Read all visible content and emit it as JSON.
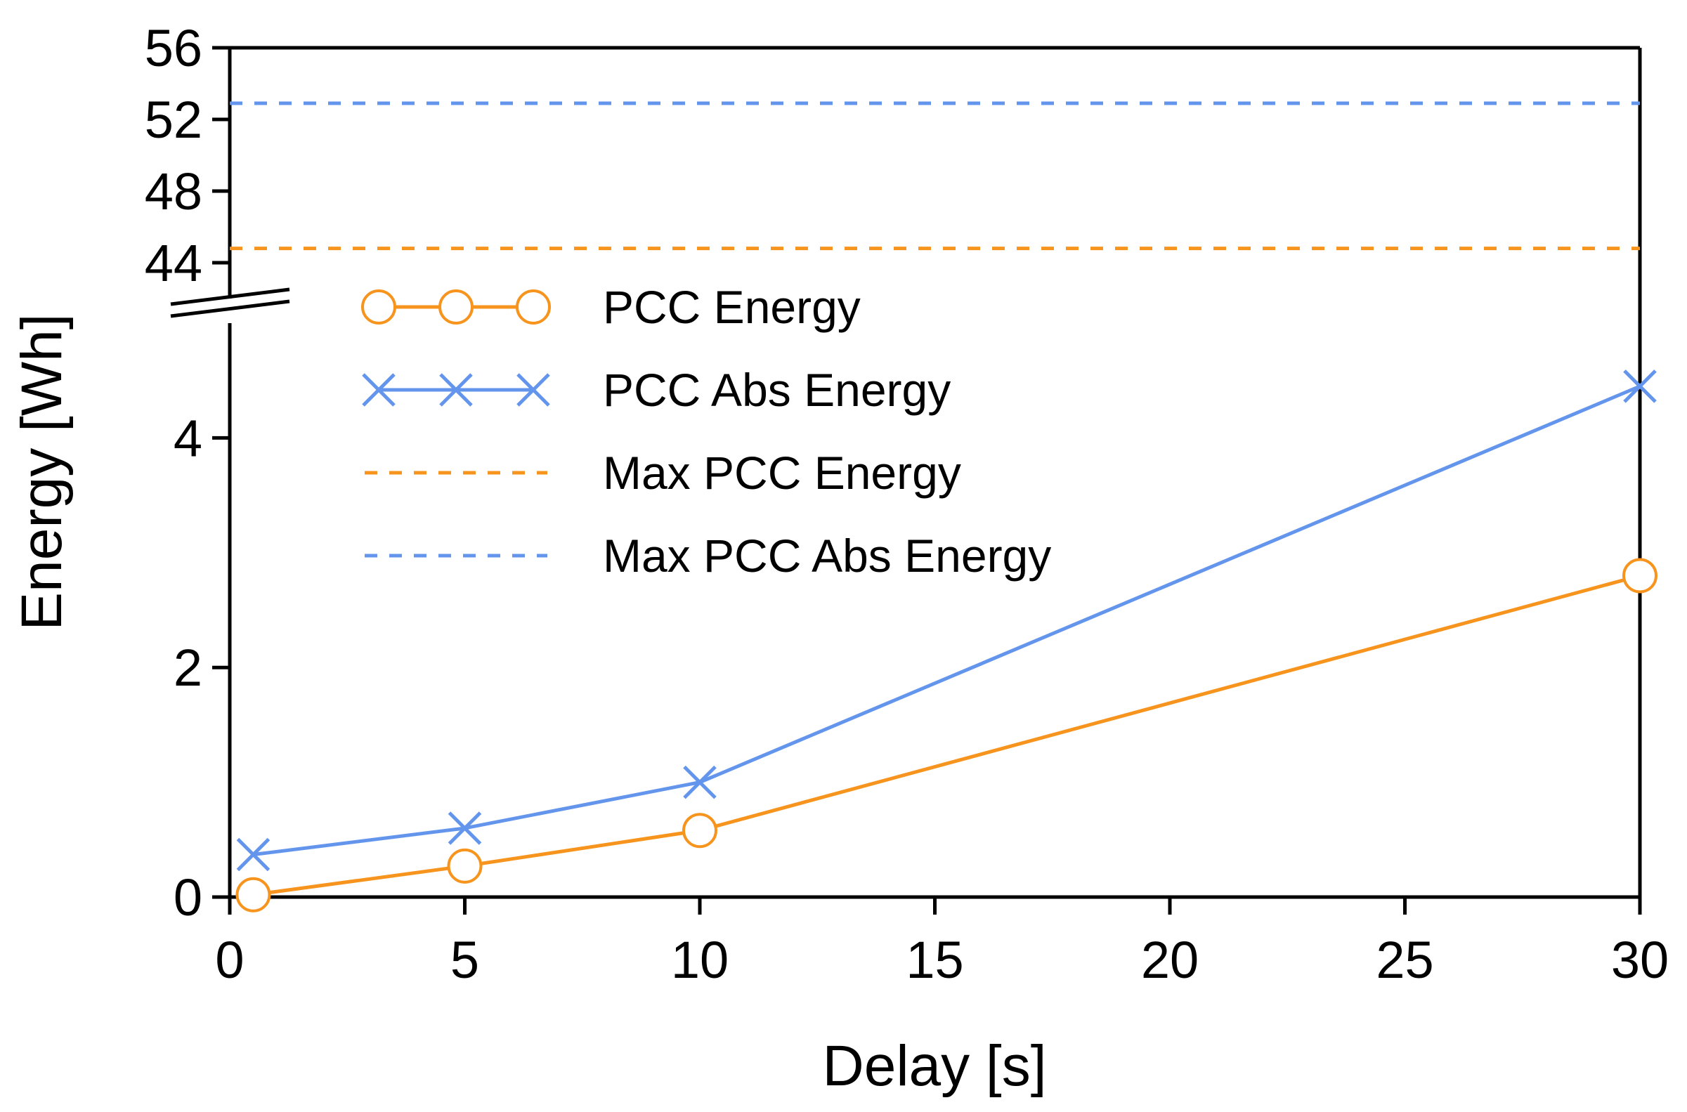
{
  "chart_data": {
    "type": "line",
    "title": "",
    "xlabel": "Delay [s]",
    "ylabel": "Energy [Wh]",
    "xlim": [
      0,
      30
    ],
    "x_ticks": [
      "0",
      "5",
      "10",
      "15",
      "20",
      "25",
      "30"
    ],
    "y_axis_broken": true,
    "ylim_lower": [
      0,
      5
    ],
    "ylim_upper": [
      42,
      56
    ],
    "y_ticks_lower": [
      "0",
      "2",
      "4"
    ],
    "y_ticks_upper": [
      "44",
      "48",
      "52",
      "56"
    ],
    "grid": false,
    "legend_position": "upper-left inside",
    "series": [
      {
        "name": "PCC Energy",
        "style": "solid",
        "marker": "circle",
        "color": "#F7941D",
        "x": [
          0.5,
          5,
          10,
          30
        ],
        "y": [
          0.02,
          0.27,
          0.58,
          2.8
        ]
      },
      {
        "name": "PCC Abs Energy",
        "style": "solid",
        "marker": "x",
        "color": "#6495ED",
        "x": [
          0.5,
          5,
          10,
          30
        ],
        "y": [
          0.37,
          0.6,
          1.0,
          4.45
        ]
      },
      {
        "name": "Max PCC Energy",
        "style": "dashed",
        "marker": "none",
        "color": "#F7941D",
        "y_constant": 44.8
      },
      {
        "name": "Max PCC Abs Energy",
        "style": "dashed",
        "marker": "none",
        "color": "#6495ED",
        "y_constant": 52.9
      }
    ]
  }
}
